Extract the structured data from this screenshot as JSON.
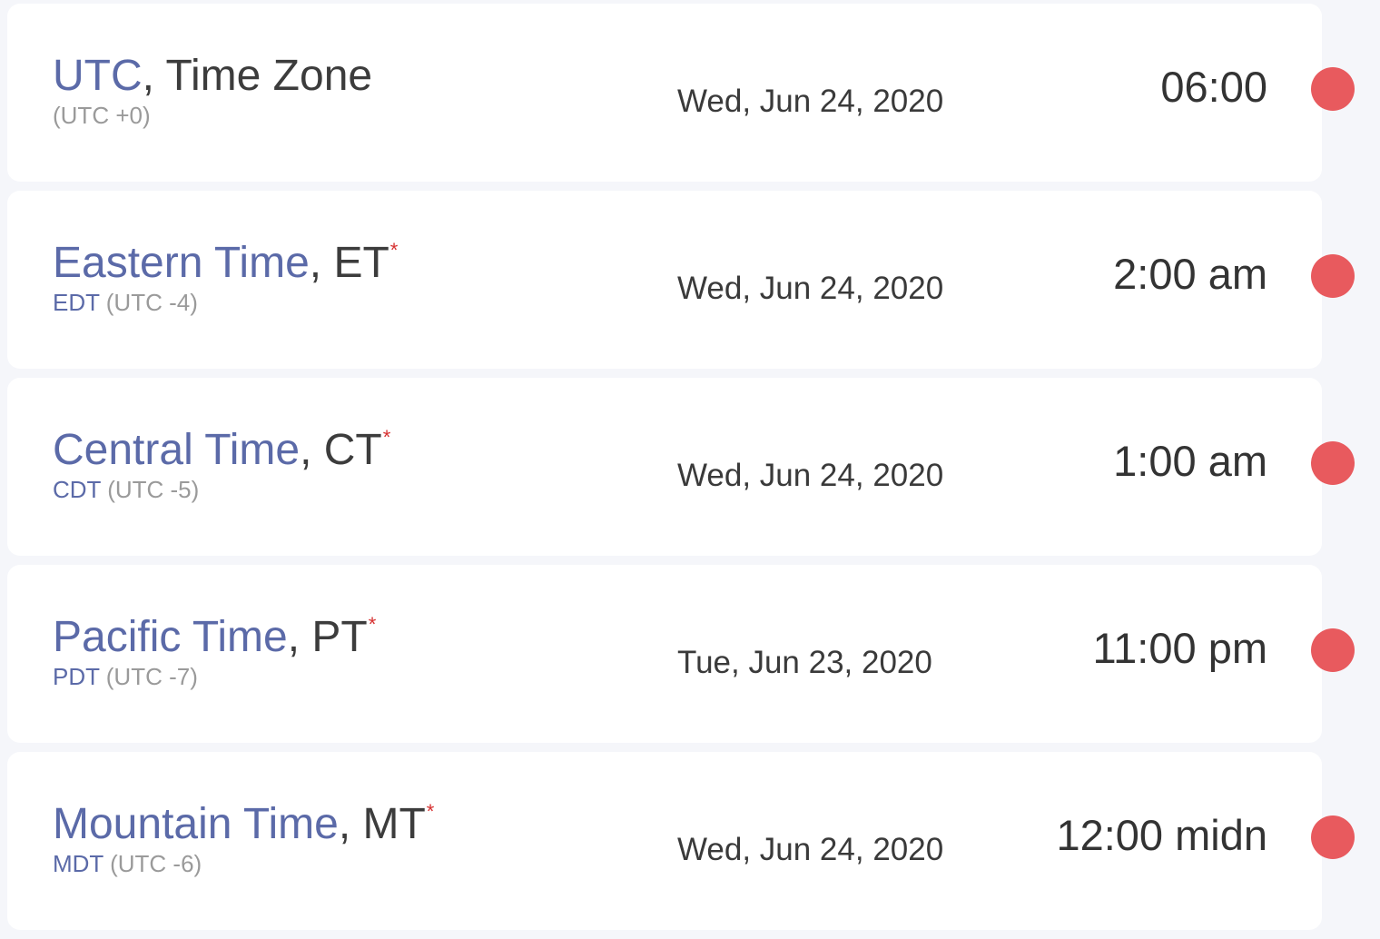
{
  "colors": {
    "accent": "#5b6aa8",
    "dot": "#e85a5e",
    "star": "#d62f2f",
    "background": "#f5f6fa",
    "card": "#ffffff"
  },
  "zones": [
    {
      "name": "UTC",
      "suffix": ", Time Zone",
      "star": "",
      "abbr": "",
      "offset": "(UTC +0)",
      "date": "Wed, Jun 24, 2020",
      "time": "06:00",
      "dot_icon": "status-dot-icon"
    },
    {
      "name": "Eastern Time",
      "suffix": ", ET",
      "star": "*",
      "abbr": "EDT",
      "offset": "(UTC -4)",
      "date": "Wed, Jun 24, 2020",
      "time": "2:00 am",
      "dot_icon": "status-dot-icon"
    },
    {
      "name": "Central Time",
      "suffix": ", CT",
      "star": "*",
      "abbr": "CDT",
      "offset": "(UTC -5)",
      "date": "Wed, Jun 24, 2020",
      "time": "1:00 am",
      "dot_icon": "status-dot-icon"
    },
    {
      "name": "Pacific Time",
      "suffix": ", PT",
      "star": "*",
      "abbr": "PDT",
      "offset": "(UTC -7)",
      "date": "Tue, Jun 23, 2020",
      "time": "11:00 pm",
      "dot_icon": "status-dot-icon"
    },
    {
      "name": "Mountain Time",
      "suffix": ", MT",
      "star": "*",
      "abbr": "MDT",
      "offset": "(UTC -6)",
      "date": "Wed, Jun 24, 2020",
      "time": "12:00 midn",
      "dot_icon": "status-dot-icon"
    }
  ]
}
